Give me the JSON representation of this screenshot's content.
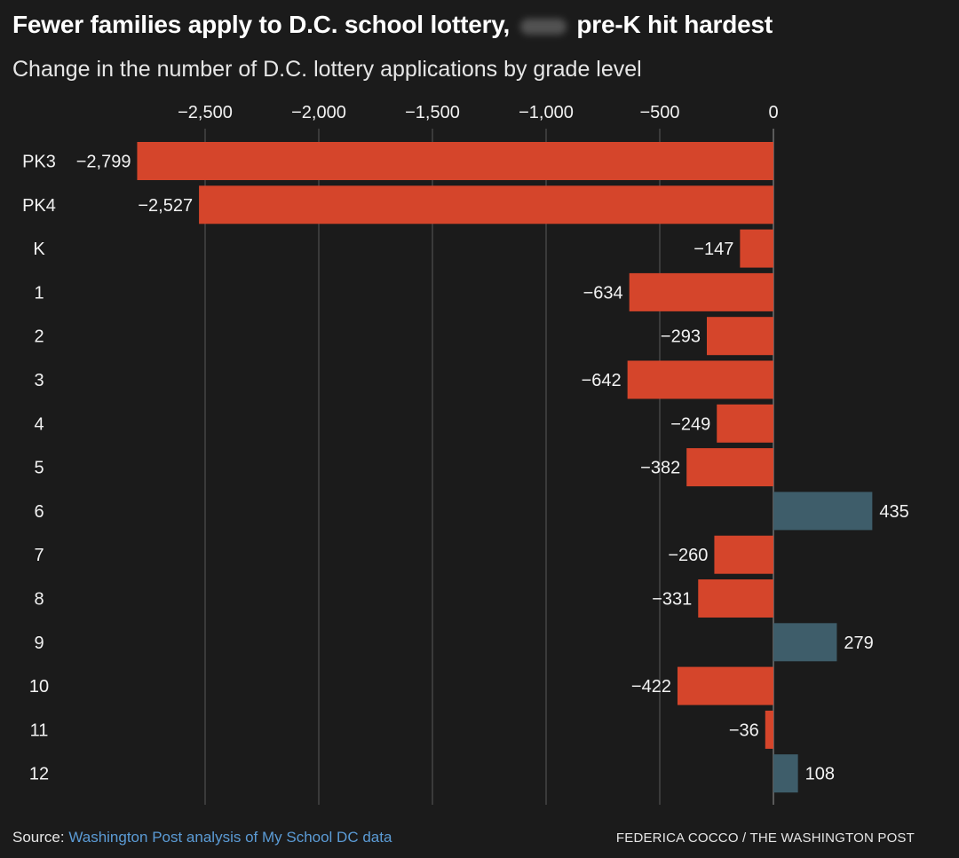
{
  "header": {
    "title_start": "Fewer families apply to D.C. school lottery,",
    "title_end": "pre-K hit hardest",
    "subtitle": "Change in the number of D.C. lottery applications by grade level"
  },
  "footer": {
    "source_label": "Source:",
    "source_link": "Washington Post analysis of My School DC data",
    "credit": "FEDERICA COCCO / THE WASHINGTON POST"
  },
  "colors": {
    "negative": "#d5452b",
    "positive": "#3e5d6a",
    "grid": "#5a5a5a",
    "text": "#f2f2f2"
  },
  "chart_data": {
    "type": "bar",
    "orientation": "horizontal",
    "title": "Fewer families apply to D.C. school lottery, pre-K hit hardest",
    "subtitle": "Change in the number of D.C. lottery applications by grade level",
    "categories": [
      "PK3",
      "PK4",
      "K",
      "1",
      "2",
      "3",
      "4",
      "5",
      "6",
      "7",
      "8",
      "9",
      "10",
      "11",
      "12"
    ],
    "values": [
      -2799,
      -2527,
      -147,
      -634,
      -293,
      -642,
      -249,
      -382,
      435,
      -260,
      -331,
      279,
      -422,
      -36,
      108
    ],
    "value_labels": [
      "−2,799",
      "−2,527",
      "−147",
      "−634",
      "−293",
      "−642",
      "−249",
      "−382",
      "435",
      "−260",
      "−331",
      "279",
      "−422",
      "−36",
      "108"
    ],
    "xlim": [
      -2800,
      625
    ],
    "xticks": [
      -2500,
      -2000,
      -1500,
      -1000,
      -500,
      0
    ],
    "xtick_labels": [
      "−2,500",
      "−2,000",
      "−1,500",
      "−1,000",
      "−500",
      "0"
    ],
    "axis_position": "top",
    "grid": true
  }
}
